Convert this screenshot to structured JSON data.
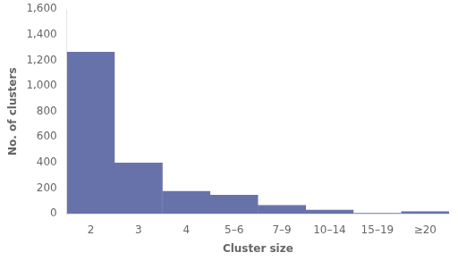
{
  "chart_data": {
    "type": "bar",
    "categories": [
      "2",
      "3",
      "4",
      "5–6",
      "7–9",
      "10–14",
      "15–19",
      "≥20"
    ],
    "values": [
      1263,
      397,
      178,
      145,
      68,
      30,
      5,
      18
    ],
    "color": "#6872aa",
    "xlabel": "Cluster size",
    "ylabel": "No. of clusters",
    "ylim": [
      0,
      1600
    ],
    "yticks": [
      0,
      200,
      400,
      600,
      800,
      {
        "value": 1000,
        "label": "1,000"
      },
      {
        "value": 1200,
        "label": "1,200"
      },
      {
        "value": 1400,
        "label": "1,400"
      },
      {
        "value": 1600,
        "label": "1,600"
      }
    ],
    "grid": false
  }
}
